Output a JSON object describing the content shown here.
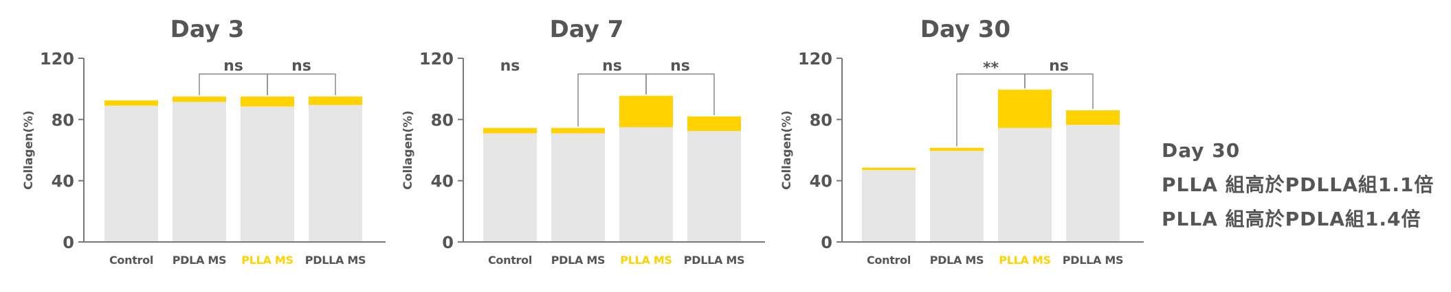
{
  "chart_data": [
    {
      "type": "bar",
      "stacked": true,
      "title": "Day 3",
      "ylabel": "Collagen(%)",
      "xlabel": "",
      "ylim": [
        0,
        120
      ],
      "yticks": [
        0,
        40,
        80,
        120
      ],
      "categories": [
        "Control",
        "PDLA MS",
        "PLLA MS",
        "PDLLA MS"
      ],
      "highlight_category": "PLLA MS",
      "series": [
        {
          "values": [
            89,
            91.5,
            88.5,
            89.5
          ],
          "color": "#e6e6e6"
        },
        {
          "values": [
            3.5,
            3.5,
            6.5,
            5.5
          ],
          "color": "#ffd200"
        }
      ],
      "annotations": [
        {
          "from": 1,
          "to": 2,
          "label": "ns"
        },
        {
          "from": 2,
          "to": 3,
          "label": "ns"
        }
      ]
    },
    {
      "type": "bar",
      "stacked": true,
      "title": "Day 7",
      "ylabel": "Collagen(%)",
      "xlabel": "",
      "ylim": [
        0,
        120
      ],
      "yticks": [
        0,
        40,
        80,
        120
      ],
      "categories": [
        "Control",
        "PDLA MS",
        "PLLA MS",
        "PDLLA MS"
      ],
      "highlight_category": "PLLA MS",
      "series": [
        {
          "values": [
            71,
            71,
            75,
            72.5
          ],
          "color": "#e6e6e6"
        },
        {
          "values": [
            3.5,
            3.5,
            20.5,
            9.5
          ],
          "color": "#ffd200"
        }
      ],
      "annotations": [
        {
          "at": 0,
          "label": "ns"
        },
        {
          "from": 1,
          "to": 2,
          "label": "ns"
        },
        {
          "from": 2,
          "to": 3,
          "label": "ns"
        }
      ]
    },
    {
      "type": "bar",
      "stacked": true,
      "title": "Day 30",
      "ylabel": "Collagen(%)",
      "xlabel": "",
      "ylim": [
        0,
        120
      ],
      "yticks": [
        0,
        40,
        80,
        120
      ],
      "categories": [
        "Control",
        "PDLA MS",
        "PLLA MS",
        "PDLLA MS"
      ],
      "highlight_category": "PLLA MS",
      "series": [
        {
          "values": [
            47,
            59.5,
            74.5,
            76.5
          ],
          "color": "#e6e6e6"
        },
        {
          "values": [
            1.5,
            2,
            25,
            9.5
          ],
          "color": "#ffd200"
        }
      ],
      "annotations": [
        {
          "from": 1,
          "to": 2,
          "label": "**"
        },
        {
          "from": 2,
          "to": 3,
          "label": "ns"
        }
      ]
    }
  ],
  "notes": {
    "heading": "Day 30",
    "line1": "PLLA 組高於PDLLA組1.1倍",
    "line2": "PLLA 組高於PDLA組1.4倍"
  },
  "colors": {
    "text": "#555555",
    "axis": "#777777",
    "bracket": "#888888",
    "highlight": "#ffd200"
  }
}
